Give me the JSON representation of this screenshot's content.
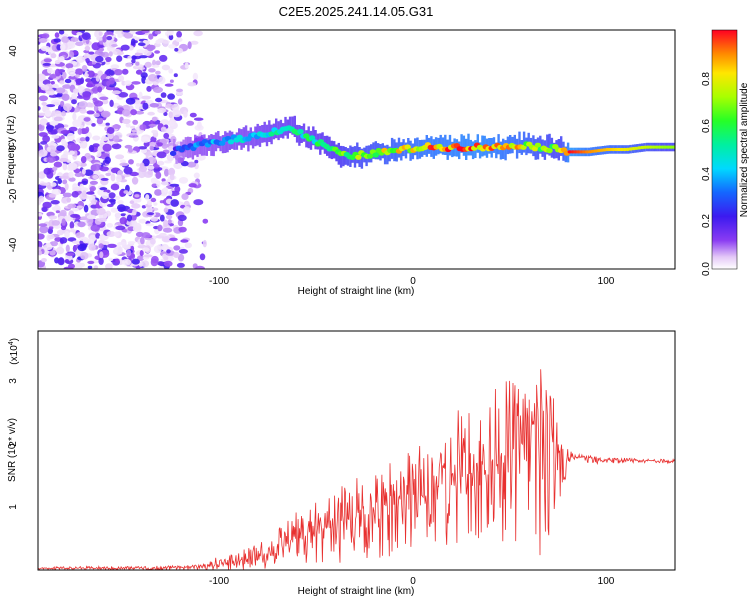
{
  "title": "C2E5.2025.241.14.05.G31",
  "top_panel": {
    "xlabel": "Height of straight line (km)",
    "ylabel": "Frequency (Hz)",
    "xticks": [
      "-100",
      "0",
      "100"
    ],
    "yticks": [
      "-40",
      "-20",
      "0",
      "20",
      "40"
    ]
  },
  "colorbar": {
    "label": "Normalized spectral amplitude",
    "ticks": [
      "0.0",
      "0.2",
      "0.4",
      "0.6",
      "0.8"
    ]
  },
  "bottom_panel": {
    "xlabel": "Height of straight line (km)",
    "ylabel": "SNR (10 * v/v)",
    "multiplier": "(x10",
    "multiplier_exp": "4",
    "multiplier_close": ")",
    "xticks": [
      "-100",
      "0",
      "100"
    ],
    "yticks": [
      "1",
      "2",
      "3"
    ]
  },
  "chart_data": [
    {
      "type": "heatmap",
      "title": "C2E5.2025.241.14.05.G31",
      "xlabel": "Height of straight line (km)",
      "ylabel": "Frequency (Hz)",
      "xlim": [
        -195,
        135
      ],
      "ylim": [
        -50,
        48
      ],
      "colorscale": "rainbow (violet=0 to red=1)",
      "clim": [
        0,
        1
      ],
      "ridge": {
        "description": "Frequency of peak spectral amplitude vs height",
        "x": [
          -125,
          -115,
          -105,
          -95,
          -85,
          -75,
          -65,
          -55,
          -45,
          -35,
          -25,
          -15,
          -5,
          5,
          15,
          25,
          35,
          45,
          55,
          65,
          75,
          80,
          90,
          100,
          110,
          120,
          130
        ],
        "y": [
          -2,
          0,
          2,
          3,
          4,
          6,
          8,
          4,
          0,
          -4,
          -3,
          -2,
          -1,
          0,
          0,
          0,
          0,
          0,
          1,
          0,
          -1,
          -2,
          -2,
          -1,
          -1,
          0,
          0
        ],
        "amplitude": [
          0.25,
          0.35,
          0.4,
          0.45,
          0.45,
          0.5,
          0.55,
          0.55,
          0.6,
          0.7,
          0.75,
          0.8,
          0.85,
          0.9,
          0.92,
          0.95,
          0.95,
          0.9,
          0.85,
          0.75,
          0.7,
          1.0,
          0.9,
          0.85,
          0.8,
          0.75,
          0.7
        ]
      },
      "noise_region_x": [
        -195,
        -108
      ]
    },
    {
      "type": "line",
      "xlabel": "Height of straight line (km)",
      "ylabel": "SNR (10 * v/v)",
      "y_multiplier": 10000,
      "xlim": [
        -195,
        135
      ],
      "ylim": [
        0,
        3.8
      ],
      "series": [
        {
          "name": "SNR",
          "color": "#e8302f",
          "x": [
            -195,
            -150,
            -110,
            -100,
            -90,
            -80,
            -70,
            -60,
            -50,
            -40,
            -30,
            -20,
            -10,
            0,
            10,
            20,
            30,
            40,
            50,
            60,
            65,
            70,
            75,
            80,
            85,
            90,
            100,
            110,
            120,
            130,
            135
          ],
          "y": [
            0.03,
            0.03,
            0.05,
            0.1,
            0.15,
            0.22,
            0.35,
            0.5,
            0.6,
            0.75,
            0.85,
            0.95,
            1.05,
            1.2,
            1.3,
            1.45,
            1.55,
            1.7,
            1.9,
            2.1,
            2.5,
            2.2,
            1.9,
            1.75,
            1.8,
            1.78,
            1.75,
            1.74,
            1.74,
            1.73,
            1.73
          ],
          "envelope_max": [
            0.05,
            0.06,
            0.08,
            0.25,
            0.3,
            0.45,
            0.7,
            0.95,
            1.1,
            1.3,
            1.5,
            1.6,
            1.8,
            2.0,
            2.2,
            2.5,
            2.7,
            2.9,
            3.1,
            2.9,
            3.7,
            3.0,
            2.4,
            1.9,
            1.85,
            1.82,
            1.8,
            1.78,
            1.77,
            1.76,
            1.76
          ],
          "envelope_min": [
            0.01,
            0.0,
            0.0,
            0.0,
            0.0,
            0.0,
            0.05,
            0.05,
            0.1,
            0.1,
            0.1,
            0.15,
            0.2,
            0.3,
            0.4,
            0.4,
            0.5,
            0.5,
            0.4,
            0.3,
            0.2,
            0.3,
            0.7,
            1.6,
            1.7,
            1.7,
            1.68,
            1.7,
            1.7,
            1.7,
            1.7
          ]
        }
      ]
    }
  ]
}
